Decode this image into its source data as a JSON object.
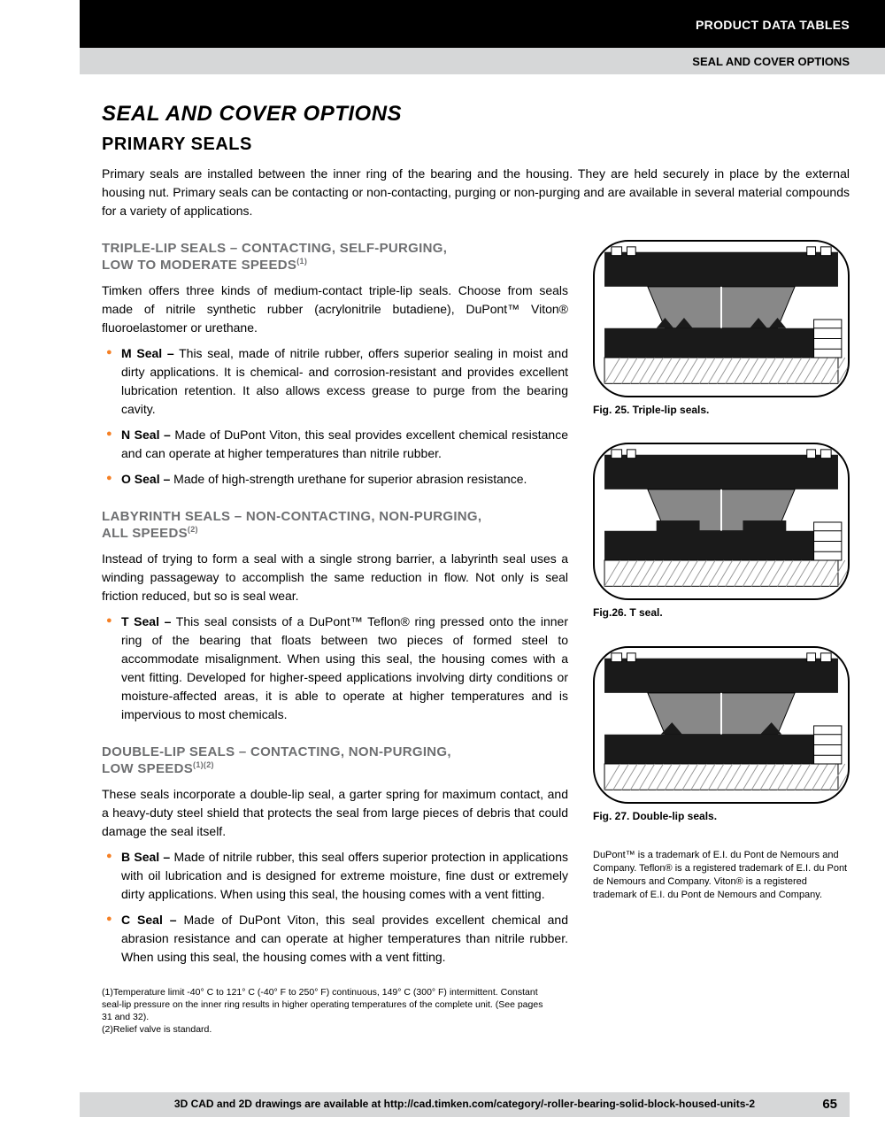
{
  "header": {
    "top": "PRODUCT DATA TABLES",
    "sub": "SEAL AND COVER OPTIONS"
  },
  "title": "SEAL AND COVER OPTIONS",
  "subtitle": "PRIMARY SEALS",
  "intro": "Primary seals are installed between the inner ring of the bearing and the housing. They are held securely in place by the external housing nut. Primary seals can be contacting or non-contacting, purging or non-purging and are available in several material compounds for a variety of applications.",
  "sections": [
    {
      "heading_a": "TRIPLE-LIP SEALS – CONTACTING, SELF-PURGING,",
      "heading_b": "LOW TO MODERATE SPEEDS",
      "sup": "(1)",
      "para": "Timken offers three kinds of medium-contact triple-lip seals. Choose from seals made of nitrile synthetic rubber (acrylonitrile butadiene), DuPont™ Viton® fluoroelastomer or urethane.",
      "bullets": [
        {
          "b": "M Seal –",
          "t": " This seal, made of nitrile rubber, offers superior sealing in moist and dirty applications. It is chemical- and corrosion-resistant and provides excellent lubrication retention. It also allows excess grease to purge from the bearing cavity."
        },
        {
          "b": "N Seal –",
          "t": " Made of DuPont Viton, this seal provides excellent chemical resistance and can operate at higher temperatures than nitrile rubber."
        },
        {
          "b": "O Seal –",
          "t": " Made of high-strength urethane for superior abrasion resistance."
        }
      ]
    },
    {
      "heading_a": "LABYRINTH SEALS – NON-CONTACTING, NON-PURGING,",
      "heading_b": "ALL SPEEDS",
      "sup": "(2)",
      "para": "Instead of trying to form a seal with a single strong barrier, a labyrinth seal uses a winding passageway to accomplish the same reduction in flow. Not only is seal friction reduced, but so is seal wear.",
      "bullets": [
        {
          "b": "T Seal –",
          "t": " This seal consists of a DuPont™ Teflon® ring pressed onto the inner ring of the bearing that floats between two pieces of formed steel to accommodate misalignment. When using this seal, the housing comes with a vent fitting. Developed for higher-speed applications involving dirty conditions or moisture-affected areas, it is able to operate at higher temperatures and is impervious to most chemicals."
        }
      ]
    },
    {
      "heading_a": "DOUBLE-LIP SEALS – CONTACTING, NON-PURGING,",
      "heading_b": "LOW SPEEDS",
      "sup": "(1)(2)",
      "para": "These seals incorporate a double-lip seal, a garter spring for maximum contact, and a heavy-duty steel shield that protects the seal from large pieces of debris that could damage the seal itself.",
      "bullets": [
        {
          "b": "B Seal –",
          "t": " Made of nitrile rubber, this seal offers superior protection in applications with oil lubrication and is designed for extreme moisture, fine dust or extremely dirty applications. When using this seal, the housing comes with a vent fitting."
        },
        {
          "b": "C Seal –",
          "t": " Made of DuPont Viton, this seal provides excellent chemical and abrasion resistance and can operate at higher temperatures than nitrile rubber. When using this seal, the housing comes with a vent fitting."
        }
      ]
    }
  ],
  "figures": [
    {
      "caption": "Fig. 25. Triple-lip seals.",
      "type": "triple"
    },
    {
      "caption": "Fig.26. T seal.",
      "type": "labyrinth"
    },
    {
      "caption": "Fig. 27. Double-lip seals.",
      "type": "double"
    }
  ],
  "footnotes": [
    "(1)Temperature limit -40° C to 121° C (-40° F to 250° F) continuous, 149° C (300° F) intermittent. Constant seal-lip pressure on the inner ring results in higher operating temperatures of the complete unit. (See pages 31 and 32).",
    "(2)Relief valve is standard."
  ],
  "trademark": "DuPont™ is a trademark of E.I. du Pont de Nemours and Company. Teflon® is a registered trademark of E.I. du Pont de Nemours and Company. Viton® is a registered trademark of E.I. du Pont de Nemours and Company.",
  "footer": "3D CAD and 2D drawings are available at http://cad.timken.com/category/-roller-bearing-solid-block-housed-units-2",
  "page_num": "65",
  "diagram_style": {
    "stroke": "#000",
    "fill_dark": "#1a1a1a",
    "fill_grey": "#888",
    "fill_hatch": "#bbb",
    "bg": "#fff"
  }
}
